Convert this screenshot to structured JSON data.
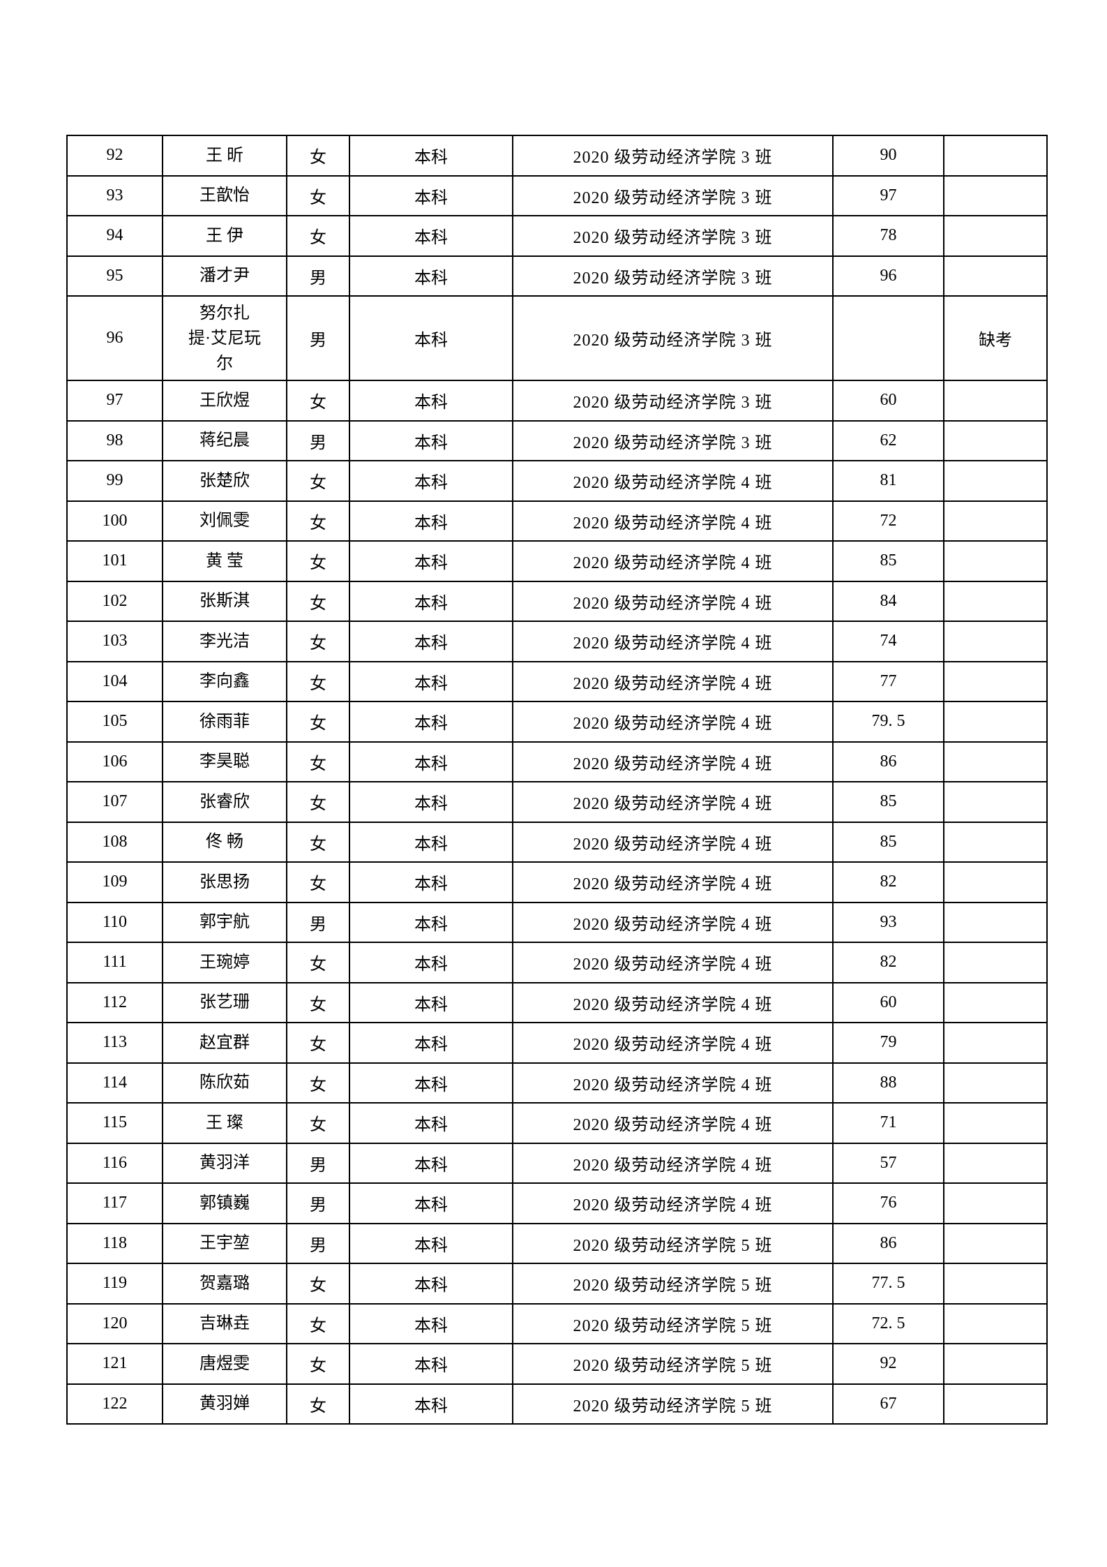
{
  "page": {
    "background_color": "#ffffff",
    "text_color": "#000000",
    "table_border_color": "#000000"
  },
  "table": {
    "columns": [
      "no",
      "name",
      "gender",
      "level",
      "class",
      "score",
      "note"
    ],
    "rows": [
      {
        "no": "92",
        "name": "王 昕",
        "gender": "女",
        "level": "本科",
        "class": "2020 级劳动经济学院 3 班",
        "score": "90",
        "note": ""
      },
      {
        "no": "93",
        "name": "王歆怡",
        "gender": "女",
        "level": "本科",
        "class": "2020 级劳动经济学院 3 班",
        "score": "97",
        "note": ""
      },
      {
        "no": "94",
        "name": "王 伊",
        "gender": "女",
        "level": "本科",
        "class": "2020 级劳动经济学院 3 班",
        "score": "78",
        "note": ""
      },
      {
        "no": "95",
        "name": "潘才尹",
        "gender": "男",
        "level": "本科",
        "class": "2020 级劳动经济学院 3 班",
        "score": "96",
        "note": ""
      },
      {
        "no": "96",
        "name": "努尔扎\n提·艾尼玩\n尔",
        "gender": "男",
        "level": "本科",
        "class": "2020 级劳动经济学院 3 班",
        "score": "",
        "note": "缺考"
      },
      {
        "no": "97",
        "name": "王欣煜",
        "gender": "女",
        "level": "本科",
        "class": "2020 级劳动经济学院 3 班",
        "score": "60",
        "note": ""
      },
      {
        "no": "98",
        "name": "蒋纪晨",
        "gender": "男",
        "level": "本科",
        "class": "2020 级劳动经济学院 3 班",
        "score": "62",
        "note": ""
      },
      {
        "no": "99",
        "name": "张楚欣",
        "gender": "女",
        "level": "本科",
        "class": "2020 级劳动经济学院 4 班",
        "score": "81",
        "note": ""
      },
      {
        "no": "100",
        "name": "刘佩雯",
        "gender": "女",
        "level": "本科",
        "class": "2020 级劳动经济学院 4 班",
        "score": "72",
        "note": ""
      },
      {
        "no": "101",
        "name": "黄 莹",
        "gender": "女",
        "level": "本科",
        "class": "2020 级劳动经济学院 4 班",
        "score": "85",
        "note": ""
      },
      {
        "no": "102",
        "name": "张斯淇",
        "gender": "女",
        "level": "本科",
        "class": "2020 级劳动经济学院 4 班",
        "score": "84",
        "note": ""
      },
      {
        "no": "103",
        "name": "李光洁",
        "gender": "女",
        "level": "本科",
        "class": "2020 级劳动经济学院 4 班",
        "score": "74",
        "note": ""
      },
      {
        "no": "104",
        "name": "李向鑫",
        "gender": "女",
        "level": "本科",
        "class": "2020 级劳动经济学院 4 班",
        "score": "77",
        "note": ""
      },
      {
        "no": "105",
        "name": "徐雨菲",
        "gender": "女",
        "level": "本科",
        "class": "2020 级劳动经济学院 4 班",
        "score": "79. 5",
        "note": ""
      },
      {
        "no": "106",
        "name": "李昊聪",
        "gender": "女",
        "level": "本科",
        "class": "2020 级劳动经济学院 4 班",
        "score": "86",
        "note": ""
      },
      {
        "no": "107",
        "name": "张睿欣",
        "gender": "女",
        "level": "本科",
        "class": "2020 级劳动经济学院 4 班",
        "score": "85",
        "note": ""
      },
      {
        "no": "108",
        "name": "佟 畅",
        "gender": "女",
        "level": "本科",
        "class": "2020 级劳动经济学院 4 班",
        "score": "85",
        "note": ""
      },
      {
        "no": "109",
        "name": "张思扬",
        "gender": "女",
        "level": "本科",
        "class": "2020 级劳动经济学院 4 班",
        "score": "82",
        "note": ""
      },
      {
        "no": "110",
        "name": "郭宇航",
        "gender": "男",
        "level": "本科",
        "class": "2020 级劳动经济学院 4 班",
        "score": "93",
        "note": ""
      },
      {
        "no": "111",
        "name": "王琬婷",
        "gender": "女",
        "level": "本科",
        "class": "2020 级劳动经济学院 4 班",
        "score": "82",
        "note": ""
      },
      {
        "no": "112",
        "name": "张艺珊",
        "gender": "女",
        "level": "本科",
        "class": "2020 级劳动经济学院 4 班",
        "score": "60",
        "note": ""
      },
      {
        "no": "113",
        "name": "赵宜群",
        "gender": "女",
        "level": "本科",
        "class": "2020 级劳动经济学院 4 班",
        "score": "79",
        "note": ""
      },
      {
        "no": "114",
        "name": "陈欣茹",
        "gender": "女",
        "level": "本科",
        "class": "2020 级劳动经济学院 4 班",
        "score": "88",
        "note": ""
      },
      {
        "no": "115",
        "name": "王 璨",
        "gender": "女",
        "level": "本科",
        "class": "2020 级劳动经济学院 4 班",
        "score": "71",
        "note": ""
      },
      {
        "no": "116",
        "name": "黄羽洋",
        "gender": "男",
        "level": "本科",
        "class": "2020 级劳动经济学院 4 班",
        "score": "57",
        "note": ""
      },
      {
        "no": "117",
        "name": "郭镇巍",
        "gender": "男",
        "level": "本科",
        "class": "2020 级劳动经济学院 4 班",
        "score": "76",
        "note": ""
      },
      {
        "no": "118",
        "name": "王宇堃",
        "gender": "男",
        "level": "本科",
        "class": "2020 级劳动经济学院 5 班",
        "score": "86",
        "note": ""
      },
      {
        "no": "119",
        "name": "贺嘉璐",
        "gender": "女",
        "level": "本科",
        "class": "2020 级劳动经济学院 5 班",
        "score": "77. 5",
        "note": ""
      },
      {
        "no": "120",
        "name": "吉琳垚",
        "gender": "女",
        "level": "本科",
        "class": "2020 级劳动经济学院 5 班",
        "score": "72. 5",
        "note": ""
      },
      {
        "no": "121",
        "name": "唐煜雯",
        "gender": "女",
        "level": "本科",
        "class": "2020 级劳动经济学院 5 班",
        "score": "92",
        "note": ""
      },
      {
        "no": "122",
        "name": "黄羽婵",
        "gender": "女",
        "level": "本科",
        "class": "2020 级劳动经济学院 5 班",
        "score": "67",
        "note": ""
      }
    ]
  }
}
